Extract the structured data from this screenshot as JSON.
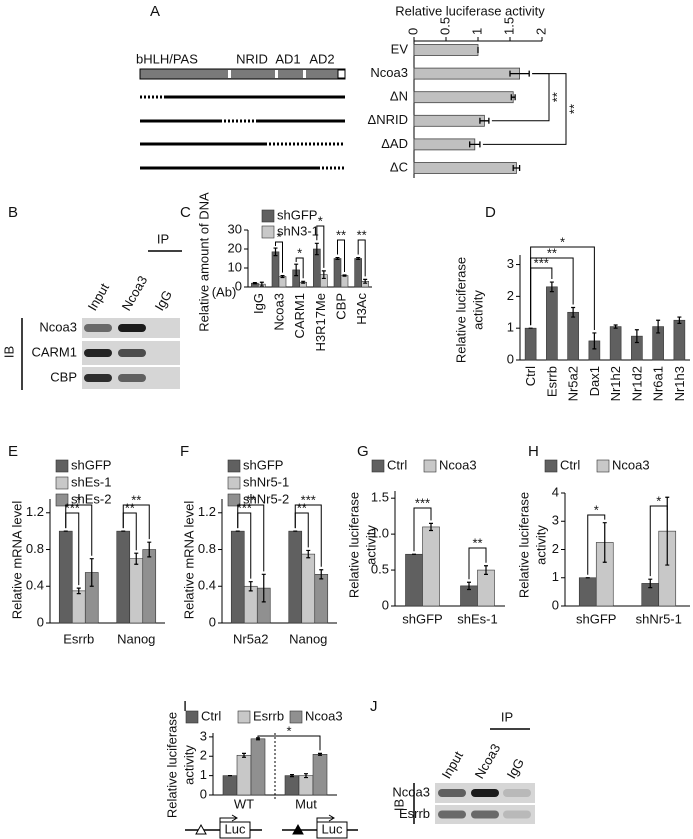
{
  "panel_labels": [
    "A",
    "B",
    "C",
    "D",
    "E",
    "F",
    "G",
    "H",
    "I",
    "J"
  ],
  "chart_data": [
    {
      "type": "hbar",
      "title": "Relative luciferase activity",
      "categories": [
        "EV",
        "Ncoa3",
        "ΔN",
        "ΔNRID",
        "ΔAD",
        "ΔC"
      ],
      "values": [
        1,
        1.65,
        1.55,
        1.1,
        0.95,
        1.6
      ],
      "errors": [
        0,
        0.15,
        0.03,
        0.07,
        0.08,
        0.05
      ],
      "color": "#c0c0c0",
      "xlim": [
        0,
        2
      ],
      "xticks": [
        0,
        0.5,
        1,
        1.5,
        2
      ],
      "annotations": [
        "**",
        "**"
      ],
      "domains": [
        "bHLH/PAS",
        "NRID",
        "AD1",
        "AD2"
      ]
    },
    {
      "type": "bar",
      "ylabel": "Relative amount of DNA",
      "axis_note": "(Ab)",
      "categories": [
        "IgG",
        "Ncoa3",
        "CARM1",
        "H3R17Me",
        "CBP",
        "H3Ac"
      ],
      "series": [
        {
          "name": "shGFP",
          "color": "#606060",
          "values": [
            2,
            18.5,
            9,
            20,
            15,
            15
          ],
          "errors": [
            0.3,
            2,
            3,
            3,
            0.5,
            0.5
          ]
        },
        {
          "name": "shN3-1",
          "color": "#c8c8c8",
          "values": [
            1.5,
            5.5,
            2.5,
            6.5,
            6,
            3
          ],
          "errors": [
            1,
            0.5,
            0.5,
            2,
            0.3,
            1
          ]
        }
      ],
      "ylim": [
        0,
        30
      ],
      "yticks": [
        0,
        10,
        20,
        30
      ],
      "annotations": [
        "*",
        "*",
        "*",
        "**",
        "**"
      ]
    },
    {
      "type": "bar",
      "ylabel_lines": [
        "Relative luciferase",
        "activity"
      ],
      "categories": [
        "Ctrl",
        "Esrrb",
        "Nr5a2",
        "Dax1",
        "Nr1h2",
        "Nr1d2",
        "Nr6a1",
        "Nr1h3"
      ],
      "values": [
        1,
        2.3,
        1.5,
        0.6,
        1.05,
        0.75,
        1.05,
        1.25
      ],
      "errors": [
        0,
        0.15,
        0.15,
        0.25,
        0.05,
        0.2,
        0.2,
        0.1
      ],
      "color": "#606060",
      "ylim": [
        0,
        3.3
      ],
      "yticks": [
        0,
        1,
        2,
        3
      ],
      "annotations": [
        "***",
        "**",
        "*"
      ]
    },
    {
      "type": "bar",
      "ylabel": "Relative mRNA level",
      "categories": [
        "Esrrb",
        "Nanog"
      ],
      "series": [
        {
          "name": "shGFP",
          "color": "#606060",
          "values": [
            1,
            1
          ],
          "errors": [
            0,
            0
          ]
        },
        {
          "name": "shEs-1",
          "color": "#c8c8c8",
          "values": [
            0.35,
            0.7
          ],
          "errors": [
            0.03,
            0.06
          ]
        },
        {
          "name": "shEs-2",
          "color": "#909090",
          "values": [
            0.55,
            0.8
          ],
          "errors": [
            0.15,
            0.08
          ]
        }
      ],
      "ylim": [
        0,
        1.35
      ],
      "yticks": [
        0,
        0.4,
        0.8,
        1.2
      ],
      "annotations": [
        "*",
        "***",
        "**",
        "**"
      ]
    },
    {
      "type": "bar",
      "ylabel": "Relative mRNA level",
      "categories": [
        "Nr5a2",
        "Nanog"
      ],
      "series": [
        {
          "name": "shGFP",
          "color": "#606060",
          "values": [
            1,
            1
          ],
          "errors": [
            0,
            0
          ]
        },
        {
          "name": "shNr5-1",
          "color": "#c8c8c8",
          "values": [
            0.4,
            0.75
          ],
          "errors": [
            0.05,
            0.04
          ]
        },
        {
          "name": "shNr5-2",
          "color": "#909090",
          "values": [
            0.38,
            0.53
          ],
          "errors": [
            0.15,
            0.05
          ]
        }
      ],
      "ylim": [
        0,
        1.35
      ],
      "yticks": [
        0,
        0.4,
        0.8,
        1.2
      ],
      "annotations": [
        "**",
        "***",
        "***",
        "**"
      ]
    },
    {
      "type": "bar",
      "ylabel_lines": [
        "Relative luciferase",
        "activity"
      ],
      "categories": [
        "shGFP",
        "shEs-1"
      ],
      "series": [
        {
          "name": "Ctrl",
          "color": "#606060",
          "values": [
            0.72,
            0.28
          ],
          "errors": [
            0,
            0.05
          ]
        },
        {
          "name": "Ncoa3",
          "color": "#c8c8c8",
          "values": [
            1.1,
            0.5
          ],
          "errors": [
            0.05,
            0.06
          ]
        }
      ],
      "ylim": [
        0,
        1.6
      ],
      "yticks": [
        0,
        0.5,
        {
          "value": 1,
          "label": "1.0"
        },
        1.5
      ],
      "annotations": [
        "***",
        "**"
      ]
    },
    {
      "type": "bar",
      "ylabel_lines": [
        "Relative luciferase",
        "activity"
      ],
      "categories": [
        "shGFP",
        "shNr5-1"
      ],
      "series": [
        {
          "name": "Ctrl",
          "color": "#606060",
          "values": [
            1,
            0.8
          ],
          "errors": [
            0,
            0.15
          ]
        },
        {
          "name": "Ncoa3",
          "color": "#c8c8c8",
          "values": [
            2.25,
            2.65
          ],
          "errors": [
            0.7,
            1.2
          ]
        }
      ],
      "ylim": [
        0,
        4
      ],
      "yticks": [
        0,
        1,
        2,
        3,
        4
      ],
      "annotations": [
        "*",
        "*"
      ]
    },
    {
      "type": "bar",
      "ylabel_lines": [
        "Relative luciferase",
        "activity"
      ],
      "categories": [
        "WT",
        "Mut"
      ],
      "series": [
        {
          "name": "Ctrl",
          "color": "#606060",
          "values": [
            1,
            1
          ],
          "errors": [
            0,
            0.05
          ]
        },
        {
          "name": "Esrrb",
          "color": "#c8c8c8",
          "values": [
            2.05,
            1
          ],
          "errors": [
            0.1,
            0.1
          ]
        },
        {
          "name": "Ncoa3",
          "color": "#909090",
          "values": [
            2.9,
            2.1
          ],
          "errors": [
            0.05,
            0.05
          ]
        }
      ],
      "ylim": [
        0,
        3.2
      ],
      "yticks": [
        0,
        1,
        2,
        3
      ],
      "annotations": [
        "*"
      ],
      "reporter_labels": [
        "Luc",
        "Luc"
      ]
    }
  ],
  "blots": [
    {
      "lanes": [
        "Input",
        "Ncoa3",
        "IgG"
      ],
      "ip": "IP",
      "ib": "IB",
      "rows": [
        "Ncoa3",
        "CARM1",
        "CBP"
      ]
    },
    {
      "lanes": [
        "Input",
        "Ncoa3",
        "IgG"
      ],
      "ip": "IP",
      "ib": "IB",
      "rows": [
        "Ncoa3",
        "Esrrb"
      ]
    }
  ]
}
